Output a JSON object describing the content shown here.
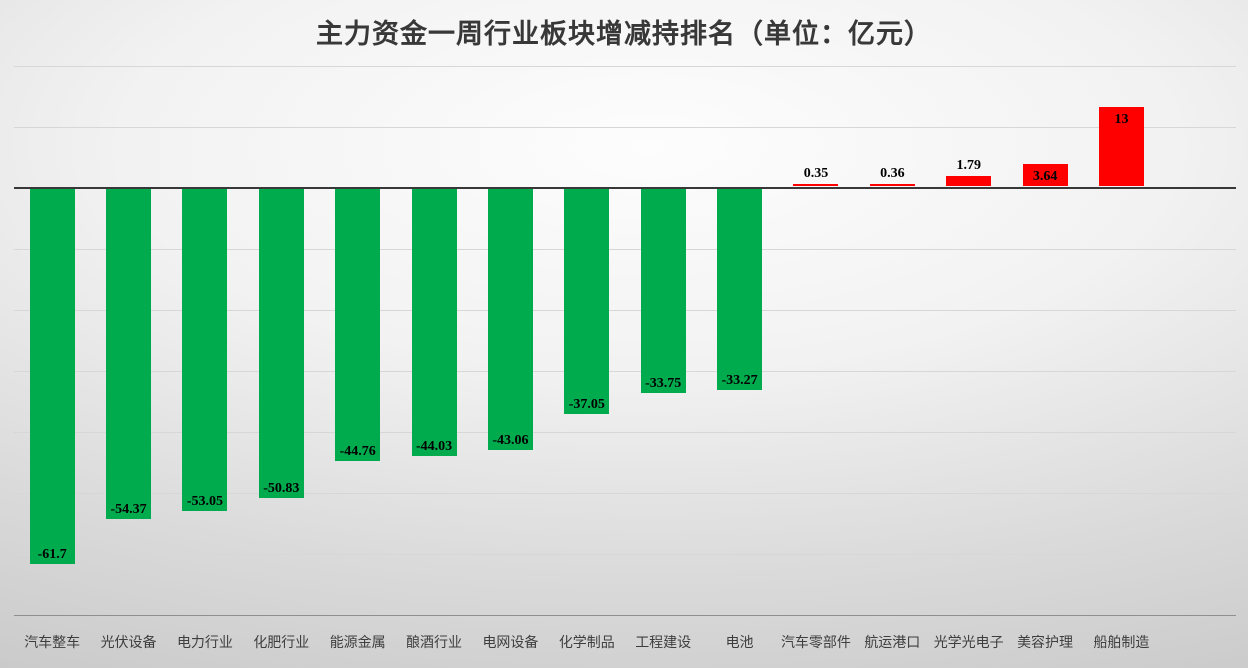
{
  "title": "主力资金一周行业板块增减持排名（单位：亿元）",
  "colors": {
    "positive_bar": "#ff0000",
    "negative_bar": "#00ab4e",
    "zero_axis": "#383838",
    "gridline": "#d7d7d7",
    "bottom_gridline": "#8f8f8f",
    "title_text": "#383838",
    "category_text": "#3e3e3e",
    "value_text": "#000000"
  },
  "chart_data": {
    "type": "bar",
    "title": "主力资金一周行业板块增减持排名（单位：亿元）",
    "xlabel": "",
    "ylabel": "",
    "ylim": [
      -70,
      20
    ],
    "gridline_step": 10,
    "grid": true,
    "legend": false,
    "categories": [
      "汽车整车",
      "光伏设备",
      "电力行业",
      "化肥行业",
      "能源金属",
      "酿酒行业",
      "电网设备",
      "化学制品",
      "工程建设",
      "电池",
      "汽车零部件",
      "航运港口",
      "光学光电子",
      "美容护理",
      "船舶制造"
    ],
    "values": [
      -61.7,
      -54.37,
      -53.05,
      -50.83,
      -44.76,
      -44.03,
      -43.06,
      -37.05,
      -33.75,
      -33.27,
      0.35,
      0.36,
      1.79,
      3.64,
      13
    ],
    "value_labels": [
      "-61.7",
      "-54.37",
      "-53.05",
      "-50.83",
      "-44.76",
      "-44.03",
      "-43.06",
      "-37.05",
      "-33.75",
      "-33.27",
      "0.35",
      "0.36",
      "1.79",
      "3.64",
      "13"
    ],
    "positive_color": "#ff0000",
    "negative_color": "#00ab4e"
  }
}
